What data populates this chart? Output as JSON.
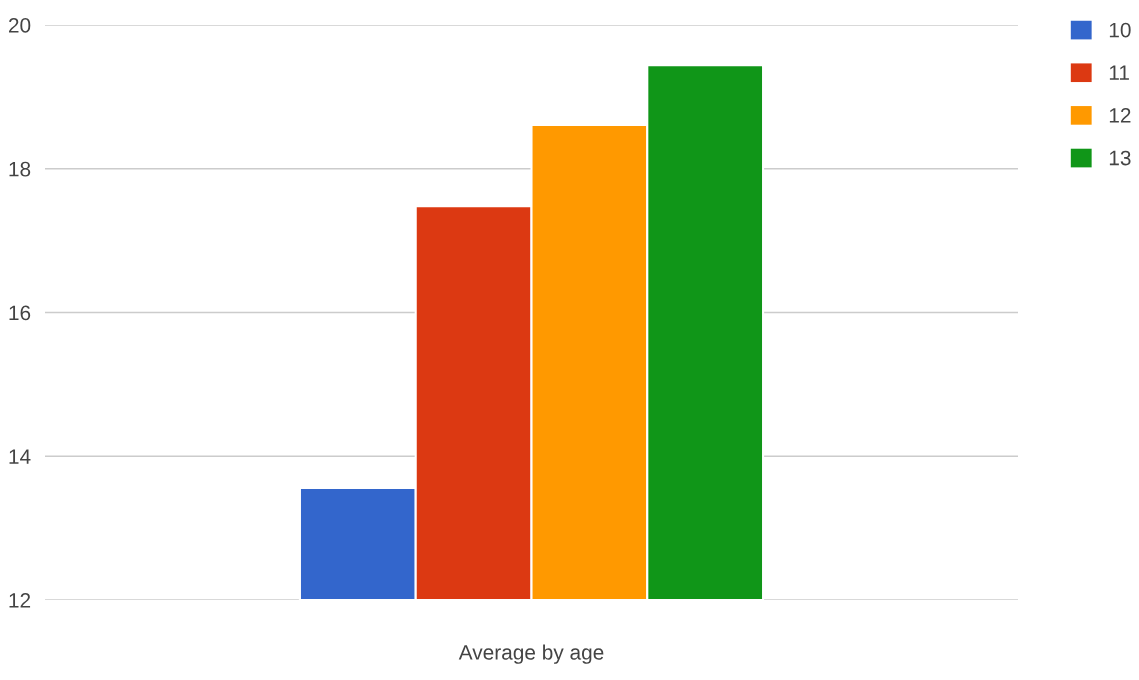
{
  "chart_data": {
    "type": "bar",
    "categories": [
      "Average by age"
    ],
    "series": [
      {
        "name": "10",
        "color": "#3366cc",
        "values": [
          13.56
        ]
      },
      {
        "name": "11",
        "color": "#dc3912",
        "values": [
          17.48
        ]
      },
      {
        "name": "12",
        "color": "#ff9900",
        "values": [
          18.61
        ]
      },
      {
        "name": "13",
        "color": "#109618",
        "values": [
          19.44
        ]
      }
    ],
    "ylim": [
      12,
      20
    ],
    "yticks": [
      12,
      14,
      16,
      18,
      20
    ],
    "grid": "y",
    "legend": "top right"
  }
}
